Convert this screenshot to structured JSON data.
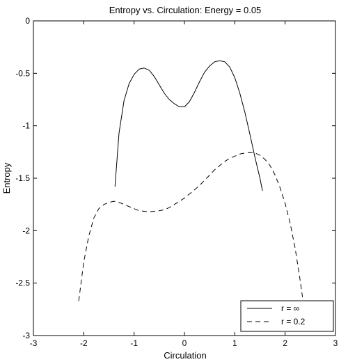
{
  "chart_data": {
    "type": "line",
    "title": "Entropy vs. Circulation: Energy = 0.05",
    "xlabel": "Circulation",
    "ylabel": "Entropy",
    "xlim": [
      -3,
      3
    ],
    "ylim": [
      -3,
      0
    ],
    "xticks": [
      "-3",
      "-2",
      "-1",
      "0",
      "1",
      "2",
      "3"
    ],
    "yticks": [
      "0",
      "-0.5",
      "-1",
      "-1.5",
      "-2",
      "-2.5",
      "-3"
    ],
    "grid": false,
    "legend_position": "bottom-right",
    "series": [
      {
        "name": "r = ∞",
        "style": "solid",
        "color": "#000000",
        "x": [
          -1.38,
          -1.3,
          -1.2,
          -1.1,
          -1.0,
          -0.9,
          -0.8,
          -0.7,
          -0.6,
          -0.5,
          -0.4,
          -0.3,
          -0.2,
          -0.1,
          0.0,
          0.1,
          0.2,
          0.3,
          0.4,
          0.5,
          0.6,
          0.7,
          0.8,
          0.9,
          1.0,
          1.1,
          1.2,
          1.3,
          1.4,
          1.5,
          1.55
        ],
        "y": [
          -1.58,
          -1.07,
          -0.76,
          -0.6,
          -0.51,
          -0.46,
          -0.45,
          -0.47,
          -0.53,
          -0.61,
          -0.69,
          -0.75,
          -0.79,
          -0.82,
          -0.82,
          -0.77,
          -0.68,
          -0.58,
          -0.49,
          -0.43,
          -0.39,
          -0.38,
          -0.39,
          -0.44,
          -0.54,
          -0.69,
          -0.87,
          -1.08,
          -1.3,
          -1.5,
          -1.62
        ]
      },
      {
        "name": "r = 0.2",
        "style": "dashed",
        "color": "#000000",
        "x": [
          -2.1,
          -2.0,
          -1.9,
          -1.8,
          -1.7,
          -1.6,
          -1.5,
          -1.4,
          -1.3,
          -1.2,
          -1.1,
          -1.0,
          -0.9,
          -0.8,
          -0.7,
          -0.6,
          -0.5,
          -0.4,
          -0.3,
          -0.2,
          -0.1,
          0.0,
          0.1,
          0.2,
          0.3,
          0.4,
          0.5,
          0.6,
          0.7,
          0.8,
          0.9,
          1.0,
          1.1,
          1.2,
          1.3,
          1.4,
          1.5,
          1.6,
          1.7,
          1.8,
          1.9,
          2.0,
          2.1,
          2.2,
          2.3,
          2.35
        ],
        "y": [
          -2.67,
          -2.3,
          -2.05,
          -1.88,
          -1.79,
          -1.75,
          -1.73,
          -1.72,
          -1.73,
          -1.75,
          -1.77,
          -1.79,
          -1.81,
          -1.815,
          -1.82,
          -1.815,
          -1.81,
          -1.8,
          -1.78,
          -1.75,
          -1.72,
          -1.69,
          -1.65,
          -1.61,
          -1.57,
          -1.52,
          -1.47,
          -1.42,
          -1.38,
          -1.34,
          -1.31,
          -1.29,
          -1.27,
          -1.26,
          -1.255,
          -1.26,
          -1.28,
          -1.32,
          -1.38,
          -1.47,
          -1.59,
          -1.74,
          -1.93,
          -2.17,
          -2.48,
          -2.65
        ]
      }
    ]
  }
}
